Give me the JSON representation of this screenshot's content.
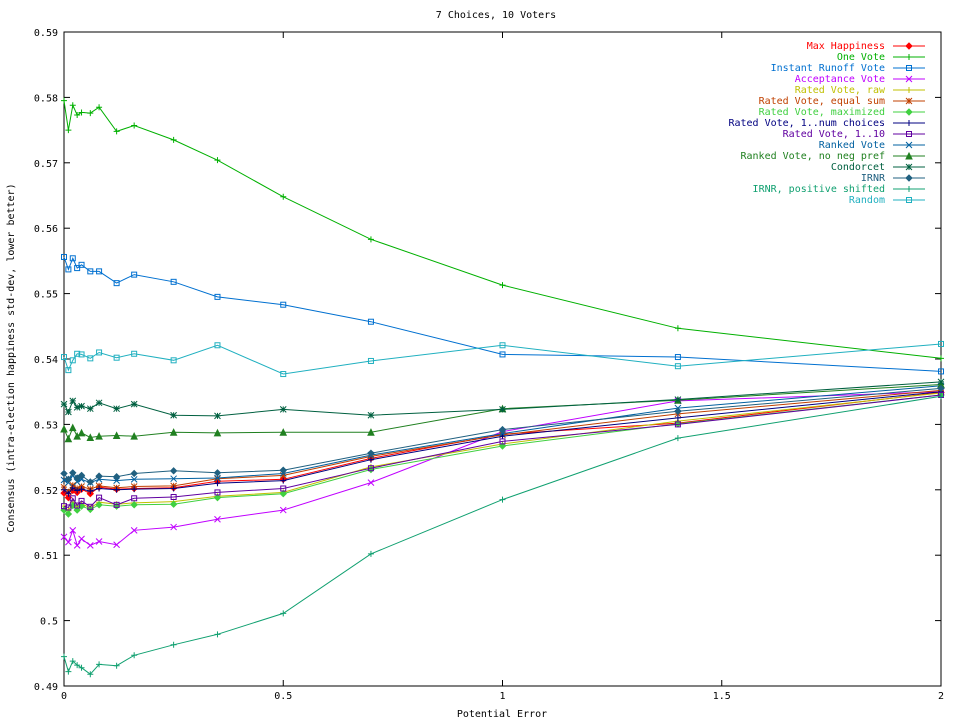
{
  "chart_data": {
    "type": "line",
    "title": "7 Choices, 10 Voters",
    "xlabel": "Potential Error",
    "ylabel": "Consensus (intra-election happiness std-dev, lower better)",
    "xlim": [
      0,
      2
    ],
    "ylim": [
      0.49,
      0.59
    ],
    "x_ticks": [
      0,
      0.5,
      1,
      1.5,
      2
    ],
    "y_ticks": [
      0.49,
      0.5,
      0.51,
      0.52,
      0.53,
      0.54,
      0.55,
      0.56,
      0.57,
      0.58,
      0.59
    ],
    "grid": false,
    "legend_position": "top-right",
    "x": [
      0,
      0.01,
      0.02,
      0.03,
      0.04,
      0.06,
      0.08,
      0.12,
      0.16,
      0.25,
      0.35,
      0.5,
      0.7,
      1.0,
      1.4,
      2.0
    ],
    "series": [
      {
        "name": "Max Happiness",
        "color": "#ff0000",
        "marker": "diamond",
        "values": [
          0.5195,
          0.5188,
          0.5199,
          0.5196,
          0.5201,
          0.5194,
          0.5204,
          0.5201,
          0.5202,
          0.5203,
          0.5213,
          0.5216,
          0.5248,
          0.5285,
          0.5302,
          0.5349
        ]
      },
      {
        "name": "One Vote",
        "color": "#00b000",
        "marker": "plus",
        "values": [
          0.5795,
          0.575,
          0.5788,
          0.5773,
          0.5777,
          0.5776,
          0.5785,
          0.5748,
          0.5757,
          0.5735,
          0.5704,
          0.5648,
          0.5583,
          0.5513,
          0.5447,
          0.5401
        ]
      },
      {
        "name": "Instant Runoff Vote",
        "color": "#0070d0",
        "marker": "square",
        "values": [
          0.5556,
          0.5537,
          0.5554,
          0.5539,
          0.5544,
          0.5534,
          0.5534,
          0.5516,
          0.5529,
          0.5518,
          0.5495,
          0.5483,
          0.5457,
          0.5407,
          0.5403,
          0.5381
        ]
      },
      {
        "name": "Acceptance Vote",
        "color": "#c000ff",
        "marker": "x",
        "values": [
          0.5128,
          0.512,
          0.5138,
          0.5115,
          0.5125,
          0.5115,
          0.5121,
          0.5116,
          0.5138,
          0.5143,
          0.5155,
          0.5169,
          0.5211,
          0.5289,
          0.5336,
          0.535
        ]
      },
      {
        "name": "Rated Vote, raw",
        "color": "#c0c000",
        "marker": "plus",
        "values": [
          0.5175,
          0.5168,
          0.5181,
          0.5174,
          0.5179,
          0.5172,
          0.5181,
          0.5178,
          0.518,
          0.5182,
          0.519,
          0.5196,
          0.5235,
          0.527,
          0.5305,
          0.5348
        ]
      },
      {
        "name": "Rated Vote, equal sum",
        "color": "#c04000",
        "marker": "star",
        "values": [
          0.5204,
          0.5197,
          0.5207,
          0.5202,
          0.5205,
          0.5201,
          0.5206,
          0.5203,
          0.5205,
          0.5206,
          0.5217,
          0.5222,
          0.5251,
          0.5284,
          0.5316,
          0.5352
        ]
      },
      {
        "name": "Rated Vote, maximized",
        "color": "#40d040",
        "marker": "diamond",
        "values": [
          0.5169,
          0.5163,
          0.5176,
          0.5169,
          0.5175,
          0.517,
          0.5177,
          0.5175,
          0.5177,
          0.5178,
          0.5188,
          0.5194,
          0.5231,
          0.5267,
          0.5301,
          0.5345
        ]
      },
      {
        "name": "Rated Vote, 1..num choices",
        "color": "#000080",
        "marker": "plus",
        "values": [
          0.52,
          0.5194,
          0.5203,
          0.5199,
          0.5201,
          0.5198,
          0.5202,
          0.52,
          0.5201,
          0.5202,
          0.521,
          0.5214,
          0.5246,
          0.5282,
          0.531,
          0.535
        ]
      },
      {
        "name": "Rated Vote, 1..10",
        "color": "#6000a0",
        "marker": "square",
        "values": [
          0.5175,
          0.5173,
          0.5187,
          0.5176,
          0.5183,
          0.5174,
          0.5188,
          0.5177,
          0.5187,
          0.5189,
          0.5196,
          0.5202,
          0.5233,
          0.5274,
          0.53,
          0.5345
        ]
      },
      {
        "name": "Ranked Vote",
        "color": "#0060a0",
        "marker": "x",
        "values": [
          0.5215,
          0.5211,
          0.5222,
          0.5212,
          0.5216,
          0.5211,
          0.5216,
          0.5214,
          0.5216,
          0.5217,
          0.5218,
          0.5225,
          0.5253,
          0.5286,
          0.5325,
          0.5359
        ]
      },
      {
        "name": "Ranked Vote, no neg pref",
        "color": "#208020",
        "marker": "triangle",
        "values": [
          0.5293,
          0.5278,
          0.5295,
          0.5282,
          0.5287,
          0.528,
          0.5282,
          0.5283,
          0.5282,
          0.5288,
          0.5287,
          0.5288,
          0.5288,
          0.5324,
          0.5337,
          0.5361
        ]
      },
      {
        "name": "Condorcet",
        "color": "#006040",
        "marker": "star",
        "values": [
          0.5331,
          0.5319,
          0.5336,
          0.5326,
          0.5328,
          0.5324,
          0.5333,
          0.5324,
          0.5331,
          0.5314,
          0.5313,
          0.5323,
          0.5314,
          0.5323,
          0.5338,
          0.5365
        ]
      },
      {
        "name": "IRNR",
        "color": "#206080",
        "marker": "diamond",
        "values": [
          0.5225,
          0.5216,
          0.5226,
          0.5218,
          0.5222,
          0.5212,
          0.5221,
          0.522,
          0.5225,
          0.5229,
          0.5226,
          0.523,
          0.5256,
          0.5292,
          0.532,
          0.5355
        ]
      },
      {
        "name": "IRNR, positive shifted",
        "color": "#10a070",
        "marker": "plus",
        "values": [
          0.4945,
          0.4922,
          0.4938,
          0.4932,
          0.4928,
          0.4918,
          0.4933,
          0.4931,
          0.4947,
          0.4963,
          0.4979,
          0.5011,
          0.5102,
          0.5185,
          0.5279,
          0.5343
        ]
      },
      {
        "name": "Random",
        "color": "#20b0c0",
        "marker": "square",
        "values": [
          0.5403,
          0.5383,
          0.5398,
          0.5408,
          0.5407,
          0.5401,
          0.541,
          0.5402,
          0.5408,
          0.5398,
          0.5421,
          0.5377,
          0.5397,
          0.5421,
          0.5389,
          0.5423
        ]
      }
    ]
  }
}
